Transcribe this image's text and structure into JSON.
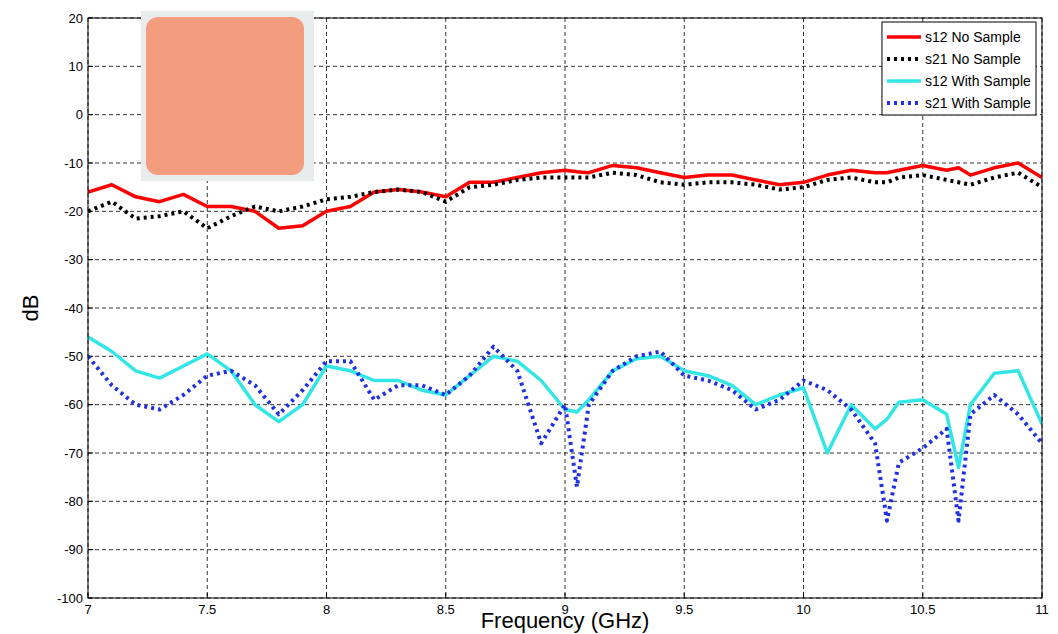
{
  "chart_data": {
    "type": "line",
    "x_label": "Frequency (GHz)",
    "y_label": "dB",
    "x": [
      7.0,
      7.1,
      7.2,
      7.3,
      7.4,
      7.5,
      7.6,
      7.7,
      7.8,
      7.9,
      8.0,
      8.1,
      8.2,
      8.3,
      8.4,
      8.5,
      8.6,
      8.7,
      8.8,
      8.9,
      9.0,
      9.05,
      9.1,
      9.2,
      9.3,
      9.4,
      9.5,
      9.6,
      9.7,
      9.8,
      9.9,
      10.0,
      10.1,
      10.2,
      10.3,
      10.35,
      10.4,
      10.5,
      10.6,
      10.65,
      10.7,
      10.8,
      10.9,
      11.0
    ],
    "series": [
      {
        "name": "s12 No Sample",
        "color": "#ff0000",
        "line_style": "solid",
        "values": [
          -16,
          -14.5,
          -17,
          -18,
          -16.5,
          -19,
          -19,
          -20,
          -23.5,
          -23,
          -20,
          -19,
          -16,
          -15.5,
          -16,
          -17,
          -14,
          -14,
          -13,
          -12,
          -11.5,
          -11.8,
          -12,
          -10.5,
          -11,
          -12,
          -13,
          -12.5,
          -12.5,
          -13.5,
          -14.5,
          -14,
          -12.5,
          -11.5,
          -12,
          -12,
          -11.5,
          -10.5,
          -11.5,
          -11,
          -12.5,
          -11,
          -10,
          -13
        ]
      },
      {
        "name": "s21 No Sample",
        "color": "#000000",
        "line_style": "dotted",
        "values": [
          -20,
          -18,
          -21.5,
          -21,
          -20,
          -23.5,
          -21,
          -19,
          -20,
          -19,
          -17.5,
          -17,
          -16,
          -15.5,
          -16,
          -18,
          -15,
          -14.5,
          -13.5,
          -13,
          -13,
          -13,
          -13,
          -12,
          -12.5,
          -14,
          -14.5,
          -14,
          -14,
          -14.5,
          -15.5,
          -15,
          -13.5,
          -13,
          -14,
          -14,
          -13,
          -12.5,
          -13.5,
          -14,
          -14.5,
          -13,
          -12,
          -15
        ]
      },
      {
        "name": "s12 With Sample",
        "color": "#33e6e6",
        "line_style": "solid",
        "values": [
          -46,
          -49,
          -53,
          -54.5,
          -52,
          -49.5,
          -53,
          -60,
          -63.5,
          -60,
          -52,
          -53,
          -55,
          -55,
          -57,
          -58,
          -54,
          -50,
          -51,
          -55,
          -61,
          -61.5,
          -59,
          -53,
          -50.5,
          -50,
          -53,
          -54,
          -56,
          -60,
          -58,
          -56.5,
          -70,
          -60,
          -65,
          -63,
          -59.5,
          -59,
          -62,
          -73,
          -60,
          -53.5,
          -53,
          -64
        ]
      },
      {
        "name": "s21 With Sample",
        "color": "#1f2fe6",
        "line_style": "dotted",
        "values": [
          -50,
          -56,
          -60,
          -61,
          -58,
          -54,
          -53,
          -56,
          -62,
          -57,
          -51,
          -51,
          -59,
          -56,
          -56,
          -58,
          -54,
          -48,
          -53,
          -68,
          -60,
          -77,
          -60,
          -53,
          -50,
          -49,
          -54,
          -55,
          -57,
          -61,
          -59,
          -55,
          -57,
          -61,
          -68,
          -84,
          -72,
          -69,
          -65,
          -84,
          -62,
          -58,
          -62,
          -68
        ]
      }
    ],
    "xlim": [
      7,
      11
    ],
    "ylim": [
      -100,
      20
    ],
    "xticks": [
      7,
      7.5,
      8,
      8.5,
      9,
      9.5,
      10,
      10.5,
      11
    ],
    "yticks": [
      -100,
      -90,
      -80,
      -70,
      -60,
      -50,
      -40,
      -30,
      -20,
      -10,
      0,
      10,
      20
    ],
    "grid": true,
    "legend": "top-right"
  }
}
